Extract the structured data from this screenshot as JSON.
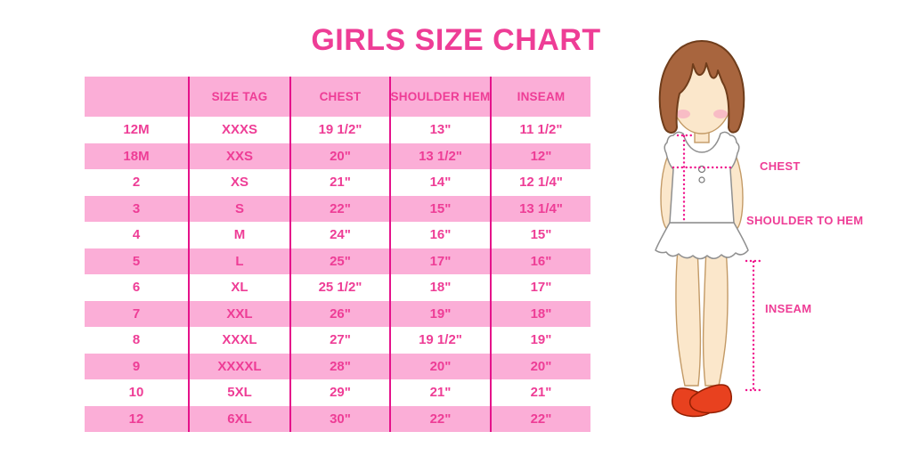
{
  "title": "GIRLS SIZE CHART",
  "table": {
    "headers": [
      "",
      "SIZE TAG",
      "CHEST",
      "SHOULDER HEM",
      "INSEAM"
    ],
    "rows": [
      [
        "12M",
        "XXXS",
        "19 1/2\"",
        "13\"",
        "11 1/2\""
      ],
      [
        "18M",
        "XXS",
        "20\"",
        "13 1/2\"",
        "12\""
      ],
      [
        "2",
        "XS",
        "21\"",
        "14\"",
        "12 1/4\""
      ],
      [
        "3",
        "S",
        "22\"",
        "15\"",
        "13 1/4\""
      ],
      [
        "4",
        "M",
        "24\"",
        "16\"",
        "15\""
      ],
      [
        "5",
        "L",
        "25\"",
        "17\"",
        "16\""
      ],
      [
        "6",
        "XL",
        "25 1/2\"",
        "18\"",
        "17\""
      ],
      [
        "7",
        "XXL",
        "26\"",
        "19\"",
        "18\""
      ],
      [
        "8",
        "XXXL",
        "27\"",
        "19 1/2\"",
        "19\""
      ],
      [
        "9",
        "XXXXL",
        "28\"",
        "20\"",
        "20\""
      ],
      [
        "10",
        "5XL",
        "29\"",
        "21\"",
        "21\""
      ],
      [
        "12",
        "6XL",
        "30\"",
        "22\"",
        "22\""
      ]
    ]
  },
  "figure": {
    "labels": {
      "chest": "CHEST",
      "shoulder": "SHOULDER TO HEM",
      "inseam": "INSEAM"
    }
  },
  "colors": {
    "accent_pink": "#EE3D96",
    "row_pink": "#FBAED7",
    "line_magenta": "#E5128A",
    "dotted_pink": "#F0148C",
    "hair_brown": "#A8653E",
    "skin": "#FBE7CB",
    "shoe_red": "#E8411F"
  }
}
